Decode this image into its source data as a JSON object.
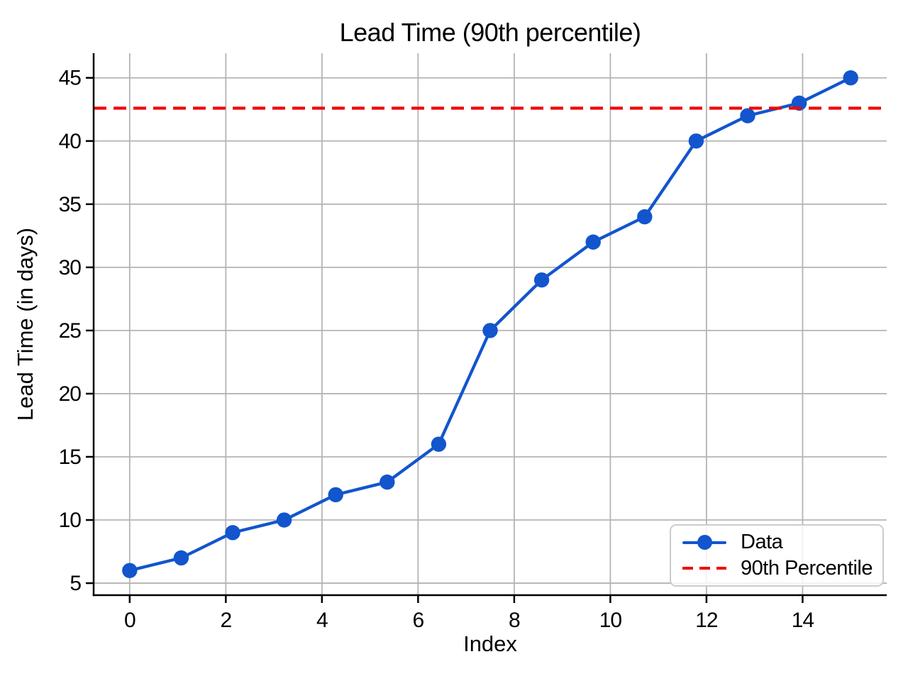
{
  "chart_data": {
    "type": "line",
    "title": "Lead Time (90th percentile)",
    "xlabel": "Index",
    "ylabel": "Lead Time (in days)",
    "xlim": [
      -0.75,
      15.75
    ],
    "ylim": [
      4.05,
      46.95
    ],
    "xticks": [
      0,
      2,
      4,
      6,
      8,
      10,
      12,
      14
    ],
    "yticks": [
      5,
      10,
      15,
      20,
      25,
      30,
      35,
      40,
      45
    ],
    "grid": true,
    "legend_position": "lower right",
    "colors": {
      "data": "#1255cd",
      "percentile": "#f20707",
      "grid": "#b4b4b4",
      "axis": "#000000",
      "text": "#000000",
      "legend_border": "#cccccc"
    },
    "series": [
      {
        "name": "Data",
        "type": "line_markers",
        "color": "#1255cd",
        "marker": "circle",
        "x": [
          0,
          1.0714,
          2.1429,
          3.2143,
          4.2857,
          5.3571,
          6.4286,
          7.5,
          8.5714,
          9.6429,
          10.7143,
          11.7857,
          12.8571,
          13.9286,
          15
        ],
        "y": [
          6,
          7,
          9,
          10,
          12,
          13,
          16,
          25,
          29,
          32,
          34,
          40,
          42,
          43,
          45
        ]
      },
      {
        "name": "90th Percentile",
        "type": "hline",
        "style": "dashed",
        "color": "#f20707",
        "y": 42.6
      }
    ]
  }
}
